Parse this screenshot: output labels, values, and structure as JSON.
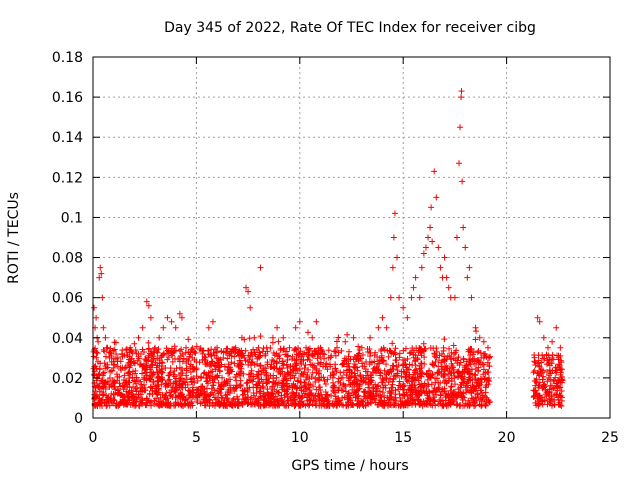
{
  "chart_data": {
    "type": "scatter",
    "title": "Day 345 of 2022, Rate Of TEC Index for receiver cibg",
    "xlabel": "GPS time / hours",
    "ylabel": "ROTI / TECUs",
    "xlim": [
      0,
      25
    ],
    "ylim": [
      0,
      0.18
    ],
    "x_ticks": [
      0,
      5,
      10,
      15,
      20,
      25
    ],
    "y_ticks": [
      0,
      0.02,
      0.04,
      0.06,
      0.08,
      0.1,
      0.12,
      0.14,
      0.16,
      0.18
    ],
    "x_tick_labels": [
      "0",
      "5",
      "10",
      "15",
      "20",
      "25"
    ],
    "y_tick_labels": [
      "0",
      "0.02",
      "0.04",
      "0.06",
      "0.08",
      "0.1",
      "0.12",
      "0.14",
      "0.16",
      "0.18"
    ],
    "grid": true,
    "marker": "+",
    "color": "#ff0000",
    "series": [
      {
        "points": [
          [
            0.05,
            0.055
          ],
          [
            0.1,
            0.045
          ],
          [
            0.15,
            0.05
          ],
          [
            0.2,
            0.04
          ],
          [
            0.25,
            0.038
          ],
          [
            0.3,
            0.07
          ],
          [
            0.35,
            0.075
          ],
          [
            0.4,
            0.072
          ],
          [
            0.45,
            0.06
          ],
          [
            0.5,
            0.045
          ],
          [
            0.6,
            0.04
          ],
          [
            0.7,
            0.035
          ],
          [
            0.8,
            0.03
          ],
          [
            0.9,
            0.028
          ],
          [
            1.0,
            0.025
          ],
          [
            1.2,
            0.03
          ],
          [
            1.4,
            0.032
          ],
          [
            1.6,
            0.034
          ],
          [
            1.8,
            0.035
          ],
          [
            2.0,
            0.037
          ],
          [
            2.2,
            0.04
          ],
          [
            2.4,
            0.045
          ],
          [
            2.6,
            0.058
          ],
          [
            2.7,
            0.056
          ],
          [
            2.8,
            0.05
          ],
          [
            3.0,
            0.035
          ],
          [
            3.2,
            0.04
          ],
          [
            3.4,
            0.045
          ],
          [
            3.6,
            0.05
          ],
          [
            3.8,
            0.048
          ],
          [
            4.0,
            0.045
          ],
          [
            4.2,
            0.052
          ],
          [
            4.3,
            0.05
          ],
          [
            4.5,
            0.035
          ],
          [
            4.8,
            0.03
          ],
          [
            5.0,
            0.028
          ],
          [
            5.3,
            0.032
          ],
          [
            5.6,
            0.045
          ],
          [
            5.8,
            0.048
          ],
          [
            6.0,
            0.035
          ],
          [
            6.3,
            0.03
          ],
          [
            6.6,
            0.032
          ],
          [
            6.9,
            0.035
          ],
          [
            7.2,
            0.04
          ],
          [
            7.4,
            0.065
          ],
          [
            7.5,
            0.063
          ],
          [
            7.6,
            0.055
          ],
          [
            7.8,
            0.04
          ],
          [
            8.0,
            0.035
          ],
          [
            8.1,
            0.075
          ],
          [
            8.4,
            0.035
          ],
          [
            8.7,
            0.04
          ],
          [
            8.9,
            0.045
          ],
          [
            9.2,
            0.04
          ],
          [
            9.5,
            0.035
          ],
          [
            9.8,
            0.045
          ],
          [
            10.0,
            0.048
          ],
          [
            10.3,
            0.035
          ],
          [
            10.6,
            0.04
          ],
          [
            10.8,
            0.048
          ],
          [
            11.0,
            0.035
          ],
          [
            11.4,
            0.03
          ],
          [
            11.8,
            0.035
          ],
          [
            12.2,
            0.038
          ],
          [
            12.6,
            0.04
          ],
          [
            13.0,
            0.035
          ],
          [
            13.4,
            0.04
          ],
          [
            13.8,
            0.045
          ],
          [
            14.0,
            0.05
          ],
          [
            14.2,
            0.045
          ],
          [
            14.4,
            0.06
          ],
          [
            14.5,
            0.075
          ],
          [
            14.55,
            0.09
          ],
          [
            14.6,
            0.102
          ],
          [
            14.7,
            0.08
          ],
          [
            14.8,
            0.06
          ],
          [
            15.0,
            0.055
          ],
          [
            15.2,
            0.05
          ],
          [
            15.4,
            0.06
          ],
          [
            15.5,
            0.065
          ],
          [
            15.6,
            0.07
          ],
          [
            15.8,
            0.06
          ],
          [
            15.9,
            0.075
          ],
          [
            16.0,
            0.082
          ],
          [
            16.1,
            0.085
          ],
          [
            16.2,
            0.09
          ],
          [
            16.3,
            0.095
          ],
          [
            16.35,
            0.105
          ],
          [
            16.4,
            0.088
          ],
          [
            16.5,
            0.123
          ],
          [
            16.6,
            0.11
          ],
          [
            16.7,
            0.085
          ],
          [
            16.8,
            0.075
          ],
          [
            16.9,
            0.07
          ],
          [
            17.0,
            0.08
          ],
          [
            17.1,
            0.07
          ],
          [
            17.2,
            0.065
          ],
          [
            17.3,
            0.06
          ],
          [
            17.5,
            0.06
          ],
          [
            17.6,
            0.09
          ],
          [
            17.7,
            0.127
          ],
          [
            17.75,
            0.145
          ],
          [
            17.8,
            0.16
          ],
          [
            17.82,
            0.163
          ],
          [
            17.85,
            0.118
          ],
          [
            17.9,
            0.095
          ],
          [
            18.0,
            0.085
          ],
          [
            18.1,
            0.07
          ],
          [
            18.2,
            0.075
          ],
          [
            18.3,
            0.06
          ],
          [
            18.5,
            0.045
          ],
          [
            18.7,
            0.04
          ],
          [
            18.9,
            0.038
          ],
          [
            19.1,
            0.035
          ],
          [
            21.5,
            0.05
          ],
          [
            21.6,
            0.048
          ],
          [
            21.8,
            0.04
          ],
          [
            22.0,
            0.035
          ],
          [
            22.2,
            0.038
          ],
          [
            22.4,
            0.045
          ],
          [
            22.6,
            0.035
          ]
        ]
      }
    ],
    "dense_band": [
      {
        "x_from": 0.0,
        "x_to": 19.2,
        "y_low": 0.006,
        "y_high": 0.035
      },
      {
        "x_from": 21.3,
        "x_to": 22.7,
        "y_low": 0.006,
        "y_high": 0.032
      }
    ]
  }
}
